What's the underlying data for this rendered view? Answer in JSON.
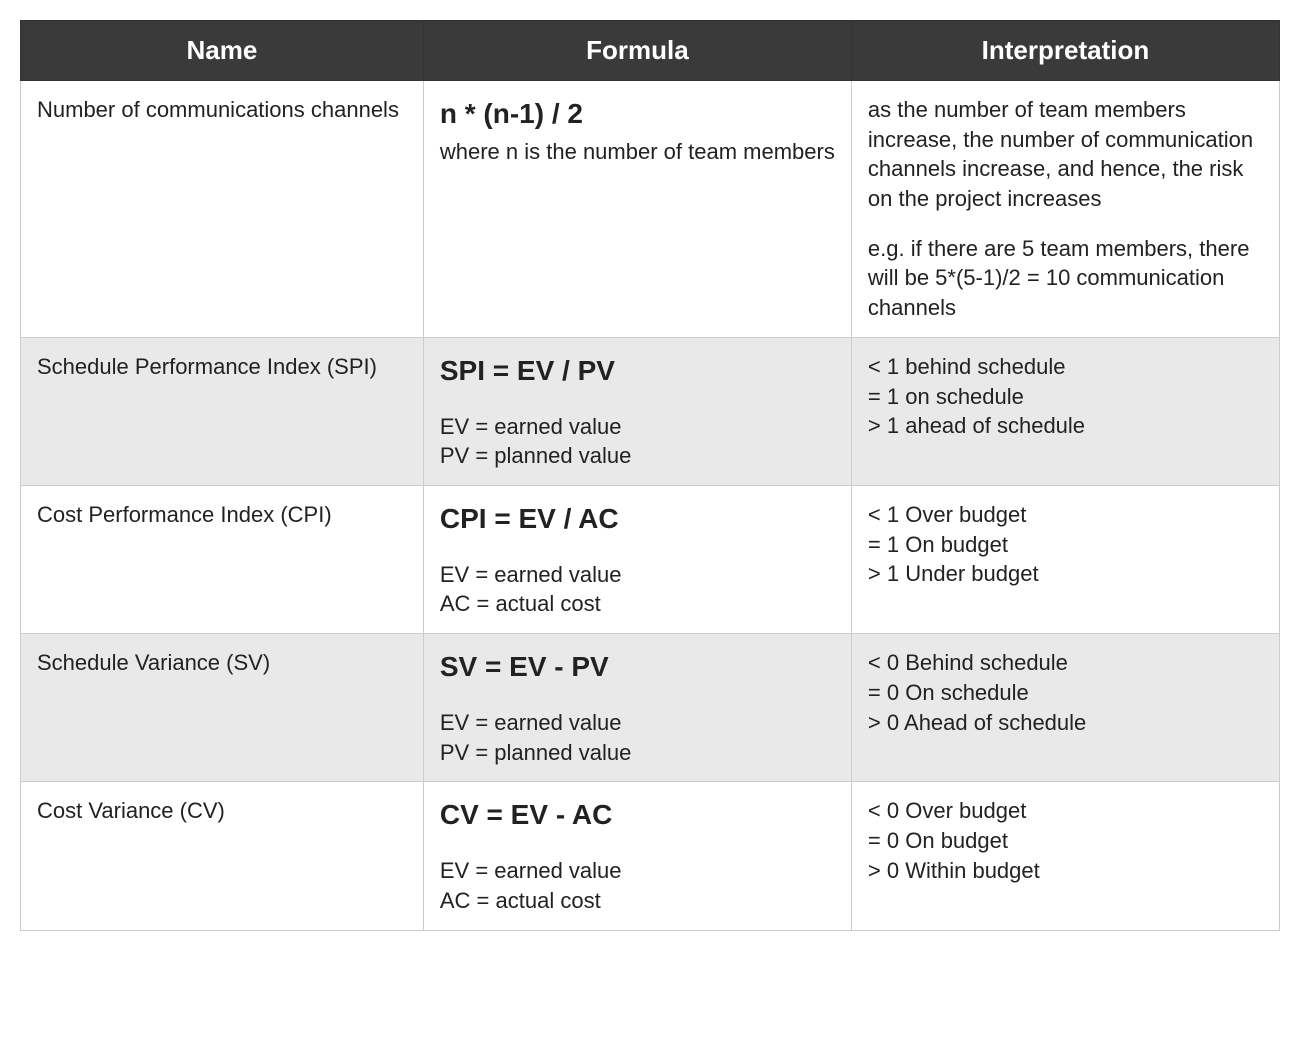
{
  "table": {
    "header_bg": "#3a3a3a",
    "row_alt_bg": "#e9e9e9",
    "row_bg": "#ffffff",
    "columns": [
      "Name",
      "Formula",
      "Interpretation"
    ],
    "col_widths": [
      "32%",
      "34%",
      "34%"
    ],
    "rows": [
      {
        "name": "Number of communications channels",
        "formula_main": "n * (n-1) / 2",
        "formula_sub1": "where n is the number of team members",
        "formula_sub2": "",
        "interp": [
          "as the number of team members increase, the number of communication channels increase, and hence, the risk on the project increases",
          "",
          "e.g. if there are 5 team members, there will be 5*(5-1)/2 = 10 communication channels"
        ]
      },
      {
        "name": "Schedule Performance Index (SPI)",
        "formula_main": "SPI = EV / PV",
        "formula_sub1": "EV = earned value",
        "formula_sub2": "PV = planned value",
        "interp": [
          "< 1 behind schedule",
          "= 1 on schedule",
          "> 1 ahead of schedule"
        ]
      },
      {
        "name": "Cost Performance Index (CPI)",
        "formula_main": "CPI = EV / AC",
        "formula_sub1": "EV = earned value",
        "formula_sub2": "AC = actual cost",
        "interp": [
          "< 1 Over budget",
          "= 1 On budget",
          "> 1 Under budget"
        ]
      },
      {
        "name": "Schedule Variance (SV)",
        "formula_main": "SV = EV - PV",
        "formula_sub1": "EV = earned value",
        "formula_sub2": "PV = planned value",
        "interp": [
          "< 0 Behind schedule",
          "= 0 On schedule",
          "> 0 Ahead of schedule"
        ]
      },
      {
        "name": "Cost Variance (CV)",
        "formula_main": "CV = EV - AC",
        "formula_sub1": "EV = earned value",
        "formula_sub2": "AC = actual cost",
        "interp": [
          "< 0 Over budget",
          "= 0 On budget",
          "> 0 Within budget"
        ]
      }
    ]
  }
}
